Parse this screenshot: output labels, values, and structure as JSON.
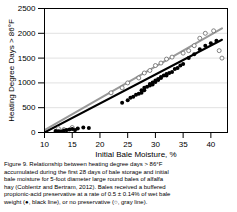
{
  "chart_data": {
    "type": "scatter",
    "xlabel": "Initial Bale Moisture, %",
    "ylabel": "Heating Degree Days > 86°F",
    "xlim": [
      10,
      43
    ],
    "ylim": [
      0,
      2500
    ],
    "xticks": [
      10,
      15,
      20,
      25,
      30,
      35,
      40
    ],
    "yticks": [
      0,
      500,
      1000,
      1500,
      2000,
      2500
    ],
    "grid": true,
    "series": [
      {
        "type": "line",
        "color": "#999999",
        "x": [
          10,
          42
        ],
        "values": [
          50,
          2100
        ]
      },
      {
        "type": "line",
        "color": "black",
        "x": [
          10,
          42
        ],
        "values": [
          0,
          1870
        ]
      },
      {
        "type": "scatter",
        "color": "#666666",
        "marker": "open_circle",
        "x": [
          12.5,
          13.5,
          15.0,
          22.0,
          24.0,
          25.0,
          27.0,
          28.0,
          29.0,
          30.0,
          31.0,
          32.0,
          33.0,
          35.0,
          36.0,
          37.0,
          38.0,
          39.0,
          40.5,
          41.5,
          42.0
        ],
        "values": [
          80,
          60,
          100,
          800,
          900,
          1000,
          1100,
          1200,
          1250,
          1350,
          1400,
          1480,
          1520,
          1600,
          1650,
          1750,
          1900,
          2000,
          2050,
          1650,
          1500
        ]
      },
      {
        "type": "scatter",
        "color": "black",
        "marker": "circle",
        "x": [
          12.0,
          12.5,
          13.0,
          13.5,
          14.0,
          14.5,
          15.0,
          15.5,
          16.0,
          17.0,
          18.0,
          24.0,
          25.0,
          25.5,
          26.0,
          26.5,
          27.0,
          27.5,
          27.5,
          28.0,
          28.0,
          28.5,
          29.0,
          29.0,
          29.5,
          29.5,
          30.0,
          30.0,
          30.5,
          30.5,
          31.0,
          31.0,
          31.5,
          32.0,
          32.0,
          32.5,
          33.0,
          33.5,
          34.0,
          34.5,
          35.0,
          36.0,
          37.0,
          38.0,
          39.0,
          40.0,
          41.0
        ],
        "values": [
          30,
          25,
          20,
          40,
          50,
          60,
          70,
          50,
          80,
          100,
          90,
          600,
          650,
          700,
          720,
          760,
          780,
          800,
          850,
          850,
          900,
          920,
          950,
          980,
          970,
          1010,
          1020,
          1050,
          1060,
          1080,
          1100,
          1120,
          1150,
          1150,
          1180,
          1200,
          1220,
          1280,
          1300,
          1350,
          1380,
          1500,
          1580,
          1680,
          1750,
          1800,
          1850
        ]
      }
    ],
    "caption": [
      "Figure 9. Relationship between heating degree days > 86°F",
      "accumulated during the first 28 days of bale storage and initial",
      "bale moisture for 5-foot diameter large round bales of alfalfa",
      "hay (Coblentz and Bertram, 2012). Bales received a buffered",
      "propionic-acid preservative at a rate of 0.5 ± 0.14% of wet bale",
      "weight (●, black line), or no preservative (○, gray line)."
    ]
  }
}
